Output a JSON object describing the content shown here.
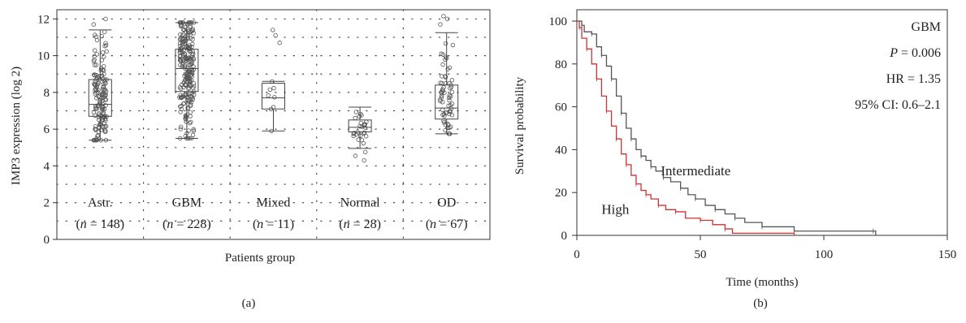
{
  "chart_data": [
    {
      "type": "box",
      "panel_label": "(a)",
      "ylabel": "IMP3 expression (log 2)",
      "xlabel": "Patients group",
      "ylim": [
        0,
        12.5
      ],
      "yticks": [
        0,
        2,
        4,
        6,
        8,
        10,
        12
      ],
      "grid": "dotted",
      "categories": [
        "Astr.",
        "GBM",
        "Mixed",
        "Normal",
        "OD"
      ],
      "n_labels": [
        "(n = 148)",
        "(n = 228)",
        "(n = 11)",
        "(n = 28)",
        "(n = 67)"
      ],
      "n_prefix": "(",
      "n_symbol": "n",
      "n_values": [
        "148",
        "228",
        "11",
        "28",
        "67"
      ],
      "boxes": [
        {
          "min": 5.4,
          "q1": 6.7,
          "median": 7.35,
          "q3": 8.7,
          "max": 11.4,
          "outliers": [
            11.7,
            12.0
          ]
        },
        {
          "min": 5.5,
          "q1": 8.05,
          "median": 9.3,
          "q3": 10.35,
          "max": 11.8,
          "outliers": []
        },
        {
          "min": 5.9,
          "q1": 7.1,
          "median": 7.7,
          "q3": 8.5,
          "max": 8.6,
          "outliers": [
            10.7,
            11.1,
            11.4
          ]
        },
        {
          "min": 4.95,
          "q1": 5.85,
          "median": 6.1,
          "q3": 6.5,
          "max": 7.2,
          "outliers": [
            4.3,
            4.55,
            4.75
          ]
        },
        {
          "min": 5.75,
          "q1": 6.55,
          "median": 7.15,
          "q3": 8.4,
          "max": 11.25,
          "outliers": [
            11.7,
            12.0,
            12.15
          ]
        }
      ],
      "n_points": [
        148,
        228,
        11,
        28,
        67
      ]
    },
    {
      "type": "line",
      "subtype": "kaplan-meier",
      "panel_label": "(b)",
      "xlabel": "Time (months)",
      "ylabel": "Survival probability",
      "xlim": [
        0,
        150
      ],
      "ylim": [
        0,
        100
      ],
      "xticks": [
        0,
        50,
        100,
        150
      ],
      "yticks": [
        0,
        20,
        40,
        60,
        80,
        100
      ],
      "annotations": {
        "title": "GBM",
        "p_symbol": "P",
        "p_value": "= 0.006",
        "hr": "HR = 1.35",
        "ci": "95% CI: 0.6–2.1"
      },
      "series": [
        {
          "name": "Intermediate",
          "color": "#555555",
          "points": [
            [
              0,
              100
            ],
            [
              2,
              98
            ],
            [
              3,
              95
            ],
            [
              6,
              94
            ],
            [
              8,
              88
            ],
            [
              10,
              84
            ],
            [
              12,
              79
            ],
            [
              14,
              73
            ],
            [
              16,
              65
            ],
            [
              18,
              57
            ],
            [
              20,
              50
            ],
            [
              22,
              45
            ],
            [
              24,
              40
            ],
            [
              26,
              37
            ],
            [
              28,
              35
            ],
            [
              30,
              32
            ],
            [
              32,
              30
            ],
            [
              35,
              27
            ],
            [
              38,
              25
            ],
            [
              42,
              22
            ],
            [
              45,
              19
            ],
            [
              48,
              17
            ],
            [
              52,
              14
            ],
            [
              56,
              12
            ],
            [
              60,
              10
            ],
            [
              64,
              8
            ],
            [
              68,
              6
            ],
            [
              75,
              4
            ],
            [
              88,
              2
            ],
            [
              120,
              2
            ],
            [
              121,
              0
            ]
          ]
        },
        {
          "name": "High",
          "color": "#cc3333",
          "points": [
            [
              0,
              100
            ],
            [
              1,
              97
            ],
            [
              2,
              92
            ],
            [
              4,
              87
            ],
            [
              6,
              80
            ],
            [
              8,
              73
            ],
            [
              10,
              65
            ],
            [
              12,
              58
            ],
            [
              14,
              51
            ],
            [
              16,
              45
            ],
            [
              18,
              38
            ],
            [
              20,
              33
            ],
            [
              22,
              28
            ],
            [
              24,
              24
            ],
            [
              26,
              21
            ],
            [
              28,
              19
            ],
            [
              30,
              17
            ],
            [
              33,
              14
            ],
            [
              36,
              12
            ],
            [
              40,
              11
            ],
            [
              44,
              8
            ],
            [
              50,
              7
            ],
            [
              55,
              5
            ],
            [
              60,
              3
            ],
            [
              63,
              1
            ],
            [
              88,
              1
            ],
            [
              88,
              0
            ]
          ]
        }
      ]
    }
  ]
}
